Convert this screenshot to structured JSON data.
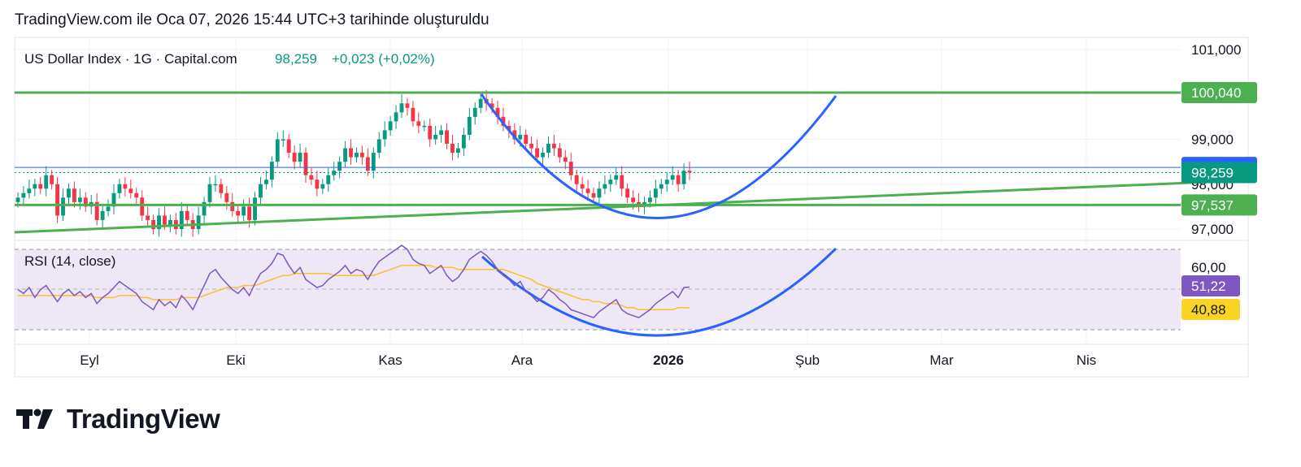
{
  "header": {
    "text": "TradingView.com ile Oca 07, 2026 15:44 UTC+3 tarihinde oluşturuldu"
  },
  "legend": {
    "symbol": "US Dollar Index · 1G · Capital.com",
    "last": "98,259",
    "change": "+0,023 (+0,02%)"
  },
  "rsi_legend": "RSI (14, close)",
  "brand": "TradingView",
  "colors": {
    "up": "#089981",
    "down": "#f23645",
    "trendline": "#4caf50",
    "curve": "#2962ff",
    "rsi": "#7e57c2",
    "rsi_ma": "#fbc02d",
    "rsi_band_fill": "#ede7f6",
    "price_label": "#089981",
    "blue_label": "#2962ff",
    "green_label": "#4caf50",
    "rsi_label": "#7e57c2",
    "rsi_ma_label": "#f9d423"
  },
  "chart_data": [
    {
      "type": "candlestick",
      "title": "US Dollar Index · 1G · Capital.com",
      "x_ticks": [
        "Eyl",
        "Eki",
        "Kas",
        "Ara",
        "2026",
        "Şub",
        "Mar",
        "Nis"
      ],
      "y_ticks": [
        "101,000",
        "99,000",
        "98,000",
        "97,000"
      ],
      "ylim": [
        96.8,
        101.2
      ],
      "grid": true,
      "candles_close": [
        97.7,
        97.8,
        97.9,
        98.0,
        97.9,
        98.2,
        98.0,
        97.3,
        97.7,
        97.9,
        97.6,
        97.7,
        97.5,
        97.6,
        97.2,
        97.4,
        97.5,
        97.8,
        98.0,
        97.9,
        97.8,
        97.7,
        97.3,
        97.2,
        97.0,
        97.3,
        97.1,
        97.2,
        97.0,
        97.4,
        97.2,
        97.0,
        97.3,
        97.6,
        98.0,
        98.0,
        97.8,
        97.6,
        97.4,
        97.3,
        97.5,
        97.2,
        97.7,
        98.0,
        98.1,
        98.5,
        99.0,
        99.0,
        98.7,
        98.5,
        98.7,
        98.2,
        98.1,
        97.9,
        98.0,
        98.2,
        98.3,
        98.5,
        98.8,
        98.6,
        98.7,
        98.6,
        98.3,
        98.7,
        99.0,
        99.2,
        99.4,
        99.6,
        99.8,
        99.7,
        99.4,
        99.3,
        99.3,
        99.0,
        99.1,
        99.2,
        98.9,
        98.7,
        98.8,
        99.1,
        99.5,
        99.7,
        99.9,
        99.8,
        99.7,
        99.5,
        99.3,
        99.2,
        99.0,
        99.1,
        98.9,
        98.8,
        98.6,
        98.7,
        98.9,
        98.8,
        98.6,
        98.5,
        98.2,
        98.0,
        97.9,
        97.8,
        97.7,
        97.9,
        98.0,
        98.1,
        98.2,
        97.9,
        97.7,
        97.6,
        97.5,
        97.6,
        97.7,
        97.9,
        98.0,
        98.1,
        98.2,
        98.0,
        98.3,
        98.26
      ],
      "levels": {
        "resistance": 100.04,
        "blue_line": 98.373,
        "support": 97.537,
        "last": 98.259
      }
    },
    {
      "type": "line",
      "title": "RSI (14, close)",
      "y_ticks": [
        "60,00"
      ],
      "series": [
        {
          "name": "RSI",
          "values": [
            50,
            48,
            51,
            46,
            50,
            52,
            48,
            44,
            48,
            50,
            47,
            49,
            46,
            48,
            43,
            46,
            48,
            51,
            54,
            52,
            50,
            48,
            44,
            42,
            40,
            45,
            42,
            44,
            41,
            47,
            44,
            40,
            46,
            52,
            58,
            60,
            56,
            53,
            50,
            48,
            51,
            47,
            53,
            58,
            60,
            63,
            68,
            67,
            62,
            58,
            61,
            55,
            53,
            51,
            52,
            55,
            57,
            59,
            62,
            58,
            60,
            59,
            55,
            60,
            64,
            66,
            68,
            70,
            72,
            70,
            65,
            63,
            62,
            58,
            60,
            62,
            57,
            54,
            56,
            60,
            65,
            67,
            69,
            67,
            64,
            60,
            57,
            55,
            52,
            54,
            49,
            47,
            44,
            46,
            50,
            48,
            45,
            43,
            40,
            39,
            38,
            37,
            36,
            39,
            41,
            43,
            45,
            40,
            38,
            37,
            36,
            38,
            40,
            43,
            45,
            47,
            49,
            46,
            51,
            51.22
          ]
        },
        {
          "name": "RSI MA",
          "values": [
            47,
            47,
            47,
            47,
            47,
            47,
            47,
            47,
            47,
            47,
            47,
            47,
            47,
            47,
            46,
            46,
            46,
            46,
            47,
            47,
            47,
            47,
            46,
            46,
            45,
            45,
            45,
            45,
            45,
            46,
            46,
            46,
            46,
            47,
            48,
            49,
            50,
            51,
            51,
            51,
            52,
            52,
            52,
            53,
            54,
            55,
            56,
            57,
            57,
            58,
            58,
            58,
            58,
            58,
            58,
            58,
            57,
            57,
            57,
            57,
            57,
            57,
            57,
            57,
            58,
            59,
            60,
            61,
            62,
            62,
            62,
            62,
            62,
            62,
            61,
            61,
            61,
            61,
            60,
            60,
            60,
            60,
            60,
            60,
            60,
            60,
            60,
            59,
            58,
            57,
            56,
            55,
            53,
            52,
            51,
            50,
            49,
            48,
            47,
            46,
            45,
            45,
            44,
            44,
            43,
            43,
            43,
            42,
            41,
            41,
            40,
            40,
            40,
            40,
            40,
            40,
            40,
            41,
            41,
            40.88
          ]
        }
      ],
      "bands": [
        30,
        60
      ],
      "labels": {
        "rsi": "51,22",
        "ma": "40,88"
      }
    }
  ]
}
